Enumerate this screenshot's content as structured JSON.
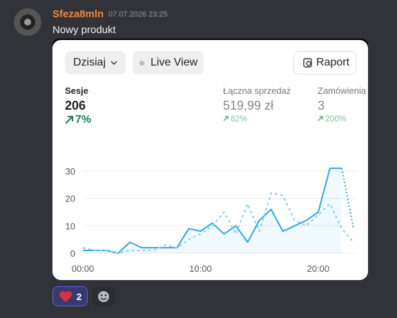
{
  "message": {
    "username": "Sfeza8mln",
    "timestamp": "07.07.2026 23:25",
    "text": "Nowy produkt",
    "reaction_count": "2"
  },
  "card": {
    "range_button": "Dzisiaj",
    "live_button": "Live View",
    "report_button": "Raport",
    "metrics": [
      {
        "label": "Sesje",
        "value": "206",
        "change": "7%"
      },
      {
        "label": "Łączna sprzedaż",
        "value": "519,99 zł",
        "change": "62%"
      },
      {
        "label": "Zamówienia",
        "value": "3",
        "change": "200%"
      }
    ]
  },
  "chart_data": {
    "type": "line",
    "x": [
      0,
      1,
      2,
      3,
      4,
      5,
      6,
      7,
      8,
      9,
      10,
      11,
      12,
      13,
      14,
      15,
      16,
      17,
      18,
      19,
      20,
      21,
      22,
      23
    ],
    "xlim": [
      0,
      23
    ],
    "xticks": [
      {
        "value": 0,
        "label": "00:00"
      },
      {
        "value": 10,
        "label": "10:00"
      },
      {
        "value": 20,
        "label": "20:00"
      }
    ],
    "ylim": [
      0,
      33
    ],
    "yticks": [
      0,
      10,
      20,
      30
    ],
    "grid": true,
    "series": [
      {
        "color": "#2aa6e0",
        "style": "solid",
        "area": true,
        "values": [
          1,
          1,
          1,
          0,
          4,
          2,
          2,
          2,
          2,
          9,
          8,
          11,
          7,
          10,
          4,
          12,
          16,
          8,
          10,
          12,
          15,
          31,
          31,
          null
        ]
      },
      {
        "color": "#2aa6e0",
        "style": "dotted",
        "values": [
          null,
          null,
          null,
          null,
          null,
          null,
          null,
          null,
          null,
          null,
          null,
          null,
          null,
          null,
          null,
          null,
          null,
          null,
          null,
          null,
          null,
          null,
          31,
          9
        ]
      },
      {
        "color": "#8fcdee",
        "style": "dashed",
        "values": [
          2,
          1,
          1,
          0,
          1,
          1,
          1,
          3,
          2,
          5,
          7,
          10,
          15,
          7,
          18,
          8,
          22,
          21,
          12,
          10,
          14,
          18,
          9,
          4
        ]
      }
    ]
  }
}
